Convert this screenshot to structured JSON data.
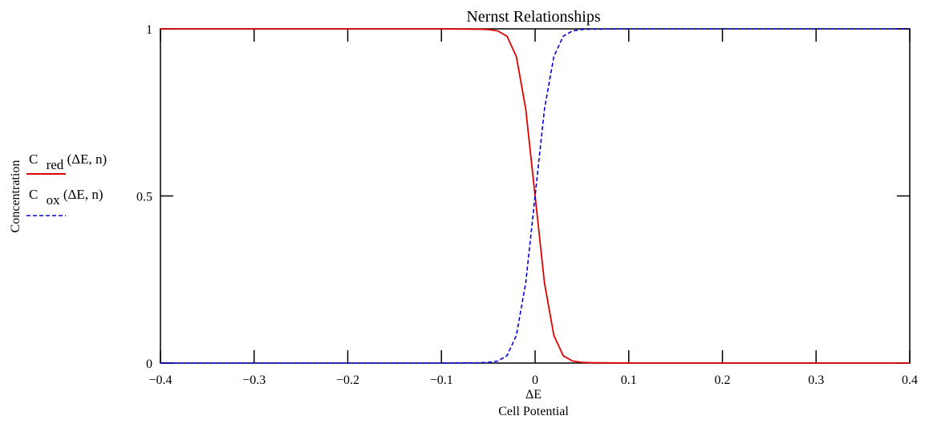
{
  "chart_data": {
    "type": "line",
    "title": "Nernst Relationships",
    "xlabel": "ΔE",
    "xlabel_sub": "Cell Potential",
    "ylabel": "Concentration",
    "xlim": [
      -0.4,
      0.4
    ],
    "ylim": [
      0,
      1
    ],
    "x_ticks": [
      -0.4,
      -0.3,
      -0.2,
      -0.1,
      0,
      0.1,
      0.2,
      0.3,
      0.4
    ],
    "x_tick_labels": [
      "−0.4",
      "−0.3",
      "−0.2",
      "−0.1",
      "0",
      "0.1",
      "0.2",
      "0.3",
      "0.4"
    ],
    "y_ticks": [
      0,
      0.5,
      1
    ],
    "y_tick_labels": [
      "0",
      "0.5",
      "1"
    ],
    "grid": false,
    "legend_position": "left",
    "series": [
      {
        "name": "C red(ΔE, n)",
        "legend_main": "C",
        "legend_sub": "red",
        "legend_args": "(ΔE, n)",
        "color": "#e00000",
        "style": "solid",
        "x": [
          -0.4,
          -0.3,
          -0.2,
          -0.1,
          -0.06,
          -0.05,
          -0.04,
          -0.03,
          -0.02,
          -0.01,
          0,
          0.01,
          0.02,
          0.03,
          0.04,
          0.05,
          0.06,
          0.1,
          0.2,
          0.3,
          0.4
        ],
        "values": [
          1,
          1,
          1,
          1,
          0.999,
          0.998,
          0.994,
          0.978,
          0.917,
          0.76,
          0.5,
          0.24,
          0.083,
          0.022,
          0.006,
          0.002,
          0.001,
          0,
          0,
          0,
          0
        ]
      },
      {
        "name": "C ox(ΔE, n)",
        "legend_main": "C",
        "legend_sub": "ox",
        "legend_args": "(ΔE, n)",
        "color": "#0000e0",
        "style": "dashed",
        "x": [
          -0.4,
          -0.3,
          -0.2,
          -0.1,
          -0.06,
          -0.05,
          -0.04,
          -0.03,
          -0.02,
          -0.01,
          0,
          0.01,
          0.02,
          0.03,
          0.04,
          0.05,
          0.06,
          0.1,
          0.2,
          0.3,
          0.4
        ],
        "values": [
          0,
          0,
          0,
          0,
          0.001,
          0.002,
          0.006,
          0.022,
          0.083,
          0.24,
          0.5,
          0.76,
          0.917,
          0.978,
          0.994,
          0.998,
          0.999,
          1,
          1,
          1,
          1
        ]
      }
    ]
  }
}
